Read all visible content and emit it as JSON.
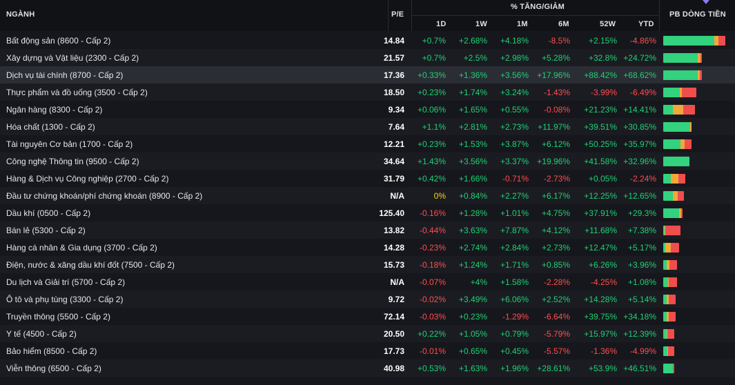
{
  "header": {
    "sector_label": "NGÀNH",
    "pe_label": "P/E",
    "change_group_label": "% TĂNG/GIẢM",
    "periods": [
      "1D",
      "1W",
      "1M",
      "6M",
      "52W",
      "YTD"
    ],
    "flow_label": "PB DÒNG TIỀN",
    "sort_icon": "sort-desc-icon"
  },
  "colors": {
    "up": "#1fd175",
    "down": "#ff4d4f",
    "flat": "#f5d90a",
    "flow_green": "#32d27e",
    "flow_orange": "#f0a83a",
    "flow_red": "#f04d4d",
    "highlight_row": "#2b2d35"
  },
  "rows": [
    {
      "sector": "Bất động sản (8600 - Cấp 2)",
      "pe": "14.84",
      "d1": "+0.7%",
      "w1": "+2.68%",
      "m1": "+4.18%",
      "m6": "-8.5%",
      "w52": "+2.15%",
      "ytd": "-4.86%",
      "flow": [
        0.82,
        0.07,
        0.11
      ],
      "flow_scale": 1.0
    },
    {
      "sector": "Xây dựng và Vật liệu (2300 - Cấp 2)",
      "pe": "21.57",
      "d1": "+0.7%",
      "w1": "+2.5%",
      "m1": "+2.98%",
      "m6": "+5.28%",
      "w52": "+32.8%",
      "ytd": "+24.72%",
      "flow": [
        0.9,
        0.06,
        0.04
      ],
      "flow_scale": 0.62
    },
    {
      "sector": "Dịch vụ tài chính (8700 - Cấp 2)",
      "pe": "17.36",
      "d1": "+0.33%",
      "w1": "+1.36%",
      "m1": "+3.56%",
      "m6": "+17.96%",
      "w52": "+88.42%",
      "ytd": "+68.62%",
      "flow": [
        0.9,
        0.05,
        0.05
      ],
      "flow_scale": 0.62,
      "highlight": true
    },
    {
      "sector": "Thực phẩm và đồ uống (3500 - Cấp 2)",
      "pe": "18.50",
      "d1": "+0.23%",
      "w1": "+1.74%",
      "m1": "+3.24%",
      "m6": "-1.43%",
      "w52": "-3.99%",
      "ytd": "-6.49%",
      "flow": [
        0.5,
        0.07,
        0.43
      ],
      "flow_scale": 0.53
    },
    {
      "sector": "Ngân hàng (8300 - Cấp 2)",
      "pe": "9.34",
      "d1": "+0.06%",
      "w1": "+1.65%",
      "m1": "+0.55%",
      "m6": "-0.08%",
      "w52": "+21.23%",
      "ytd": "+14.41%",
      "flow": [
        0.3,
        0.33,
        0.37
      ],
      "flow_scale": 0.51
    },
    {
      "sector": "Hóa chất (1300 - Cấp 2)",
      "pe": "7.64",
      "d1": "+1.1%",
      "w1": "+2.81%",
      "m1": "+2.73%",
      "m6": "+11.97%",
      "w52": "+39.51%",
      "ytd": "+30.85%",
      "flow": [
        0.95,
        0.05,
        0.0
      ],
      "flow_scale": 0.46
    },
    {
      "sector": "Tài nguyên Cơ bản (1700 - Cấp 2)",
      "pe": "12.21",
      "d1": "+0.23%",
      "w1": "+1.53%",
      "m1": "+3.87%",
      "m6": "+6.12%",
      "w52": "+50.25%",
      "ytd": "+35.97%",
      "flow": [
        0.6,
        0.15,
        0.25
      ],
      "flow_scale": 0.45
    },
    {
      "sector": "Công nghệ Thông tin (9500 - Cấp 2)",
      "pe": "34.64",
      "d1": "+1.43%",
      "w1": "+3.56%",
      "m1": "+3.37%",
      "m6": "+19.96%",
      "w52": "+41.58%",
      "ytd": "+32.96%",
      "flow": [
        1.0,
        0.0,
        0.0
      ],
      "flow_scale": 0.42
    },
    {
      "sector": "Hàng & Dịch vụ Công nghiệp (2700 - Cấp 2)",
      "pe": "31.79",
      "d1": "+0.42%",
      "w1": "+1.66%",
      "m1": "-0.71%",
      "m6": "-2.73%",
      "w52": "+0.05%",
      "ytd": "-2.24%",
      "flow": [
        0.35,
        0.35,
        0.3
      ],
      "flow_scale": 0.36
    },
    {
      "sector": "Đầu tư chứng khoán/phí chứng khoán (8900 - Cấp 2)",
      "pe": "N/A",
      "d1": "0%",
      "w1": "+0.84%",
      "m1": "+2.27%",
      "m6": "+6.17%",
      "w52": "+12.25%",
      "ytd": "+12.65%",
      "flow": [
        0.45,
        0.25,
        0.3
      ],
      "flow_scale": 0.33
    },
    {
      "sector": "Dầu khí (0500 - Cấp 2)",
      "pe": "125.40",
      "d1": "-0.16%",
      "w1": "+1.28%",
      "m1": "+1.01%",
      "m6": "+4.75%",
      "w52": "+37.91%",
      "ytd": "+29.3%",
      "flow": [
        0.82,
        0.1,
        0.08
      ],
      "flow_scale": 0.31
    },
    {
      "sector": "Bán lẻ (5300 - Cấp 2)",
      "pe": "13.82",
      "d1": "-0.44%",
      "w1": "+3.63%",
      "m1": "+7.87%",
      "m6": "+4.12%",
      "w52": "+11.68%",
      "ytd": "+7.38%",
      "flow": [
        0.08,
        0.04,
        0.88
      ],
      "flow_scale": 0.28
    },
    {
      "sector": "Hàng cá nhân & Gia dụng (3700 - Cấp 2)",
      "pe": "14.28",
      "d1": "-0.23%",
      "w1": "+2.74%",
      "m1": "+2.84%",
      "m6": "+2.73%",
      "w52": "+12.47%",
      "ytd": "+5.17%",
      "flow": [
        0.15,
        0.35,
        0.5
      ],
      "flow_scale": 0.25
    },
    {
      "sector": "Điện, nước & xăng dầu khí đốt (7500 - Cấp 2)",
      "pe": "15.73",
      "d1": "-0.18%",
      "w1": "+1.24%",
      "m1": "+1.71%",
      "m6": "+0.85%",
      "w52": "+6.26%",
      "ytd": "+3.96%",
      "flow": [
        0.25,
        0.2,
        0.55
      ],
      "flow_scale": 0.22
    },
    {
      "sector": "Du lịch và Giải trí (5700 - Cấp 2)",
      "pe": "N/A",
      "d1": "-0.07%",
      "w1": "+4%",
      "m1": "+1.58%",
      "m6": "-2.28%",
      "w52": "-4.25%",
      "ytd": "+1.08%",
      "flow": [
        0.35,
        0.05,
        0.6
      ],
      "flow_scale": 0.22
    },
    {
      "sector": "Ô tô và phụ tùng (3300 - Cấp 2)",
      "pe": "9.72",
      "d1": "-0.02%",
      "w1": "+3.49%",
      "m1": "+6.06%",
      "m6": "+2.52%",
      "w52": "+14.28%",
      "ytd": "+5.14%",
      "flow": [
        0.3,
        0.15,
        0.55
      ],
      "flow_scale": 0.2
    },
    {
      "sector": "Truyền thông (5500 - Cấp 2)",
      "pe": "72.14",
      "d1": "-0.03%",
      "w1": "+0.23%",
      "m1": "-1.29%",
      "m6": "-6.64%",
      "w52": "+39.75%",
      "ytd": "+34.18%",
      "flow": [
        0.3,
        0.15,
        0.55
      ],
      "flow_scale": 0.2
    },
    {
      "sector": "Y tế (4500 - Cấp 2)",
      "pe": "20.50",
      "d1": "+0.22%",
      "w1": "+1.05%",
      "m1": "+0.79%",
      "m6": "-5.79%",
      "w52": "+15.97%",
      "ytd": "+12.39%",
      "flow": [
        0.3,
        0.1,
        0.6
      ],
      "flow_scale": 0.18
    },
    {
      "sector": "Bảo hiểm (8500 - Cấp 2)",
      "pe": "17.73",
      "d1": "-0.01%",
      "w1": "+0.65%",
      "m1": "+0.45%",
      "m6": "-5.57%",
      "w52": "-1.36%",
      "ytd": "-4.99%",
      "flow": [
        0.35,
        0.1,
        0.55
      ],
      "flow_scale": 0.18
    },
    {
      "sector": "Viễn thông (6500 - Cấp 2)",
      "pe": "40.98",
      "d1": "+0.53%",
      "w1": "+1.63%",
      "m1": "+1.96%",
      "m6": "+28.61%",
      "w52": "+53.9%",
      "ytd": "+46.51%",
      "flow": [
        0.85,
        0.05,
        0.1
      ],
      "flow_scale": 0.18
    }
  ]
}
